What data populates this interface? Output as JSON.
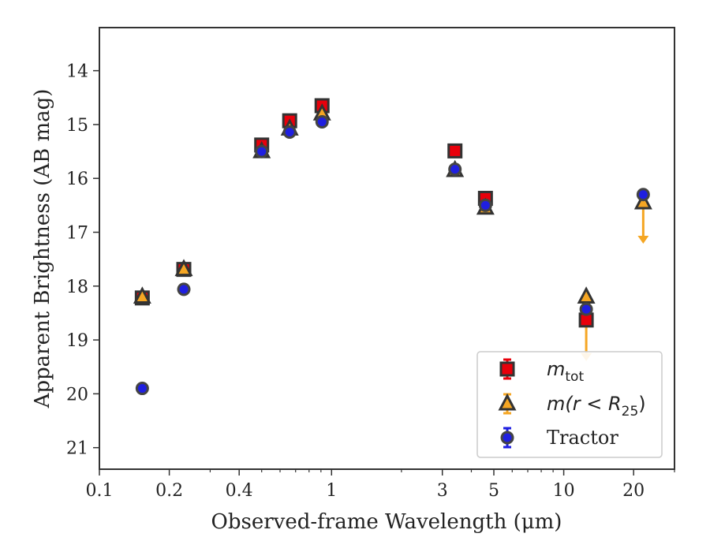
{
  "chart_data": {
    "type": "scatter",
    "xscale": "log",
    "yinverted": true,
    "xlim": [
      0.1,
      30
    ],
    "ylim": [
      21.4,
      13.2
    ],
    "xlabel": "Observed-frame Wavelength (μm)",
    "ylabel": "Apparent Brightness (AB mag)",
    "xticks": [
      {
        "v": 0.1,
        "label": "0.1"
      },
      {
        "v": 0.2,
        "label": "0.2"
      },
      {
        "v": 0.4,
        "label": "0.4"
      },
      {
        "v": 1,
        "label": "1"
      },
      {
        "v": 3,
        "label": "3"
      },
      {
        "v": 5,
        "label": "5"
      },
      {
        "v": 10,
        "label": "10"
      },
      {
        "v": 20,
        "label": "20"
      }
    ],
    "xminor": [
      0.3,
      0.5,
      0.6,
      0.7,
      0.8,
      0.9,
      2,
      4,
      6,
      7,
      8,
      9,
      30
    ],
    "yticks": [
      {
        "v": 14,
        "label": "14"
      },
      {
        "v": 15,
        "label": "15"
      },
      {
        "v": 16,
        "label": "16"
      },
      {
        "v": 17,
        "label": "17"
      },
      {
        "v": 18,
        "label": "18"
      },
      {
        "v": 19,
        "label": "19"
      },
      {
        "v": 20,
        "label": "20"
      },
      {
        "v": 21,
        "label": "21"
      }
    ],
    "legend_position": "lower right",
    "series": [
      {
        "legend_prefix": "m",
        "legend_sub": "tot",
        "legend_suffix": "",
        "marker": "square",
        "color": "#e8000b",
        "points": [
          {
            "x": 0.153,
            "y": 18.22
          },
          {
            "x": 0.231,
            "y": 17.69
          },
          {
            "x": 0.5,
            "y": 15.38
          },
          {
            "x": 0.66,
            "y": 14.93
          },
          {
            "x": 0.91,
            "y": 14.65
          },
          {
            "x": 3.4,
            "y": 15.49
          },
          {
            "x": 4.6,
            "y": 16.37
          },
          {
            "x": 12.5,
            "y": 18.63,
            "upper_limit": true
          }
        ]
      },
      {
        "legend_prefix": "m(r < R",
        "legend_sub": "25",
        "legend_suffix": ")",
        "marker": "triangle",
        "color": "#f5a623",
        "points": [
          {
            "x": 0.153,
            "y": 18.2
          },
          {
            "x": 0.231,
            "y": 17.69
          },
          {
            "x": 0.5,
            "y": 15.5
          },
          {
            "x": 0.66,
            "y": 15.08
          },
          {
            "x": 0.91,
            "y": 14.8
          },
          {
            "x": 3.4,
            "y": 15.85
          },
          {
            "x": 4.6,
            "y": 16.55
          },
          {
            "x": 12.5,
            "y": 18.2
          },
          {
            "x": 22.0,
            "y": 16.45,
            "upper_limit": true
          }
        ]
      },
      {
        "legend_label": "Tractor",
        "marker": "circle",
        "color": "#1f1fe0",
        "points": [
          {
            "x": 0.153,
            "y": 19.9
          },
          {
            "x": 0.231,
            "y": 18.06
          },
          {
            "x": 0.5,
            "y": 15.5
          },
          {
            "x": 0.66,
            "y": 15.14
          },
          {
            "x": 0.91,
            "y": 14.95
          },
          {
            "x": 3.4,
            "y": 15.83
          },
          {
            "x": 4.6,
            "y": 16.5
          },
          {
            "x": 12.5,
            "y": 18.43
          },
          {
            "x": 22.0,
            "y": 16.3
          }
        ]
      }
    ]
  }
}
